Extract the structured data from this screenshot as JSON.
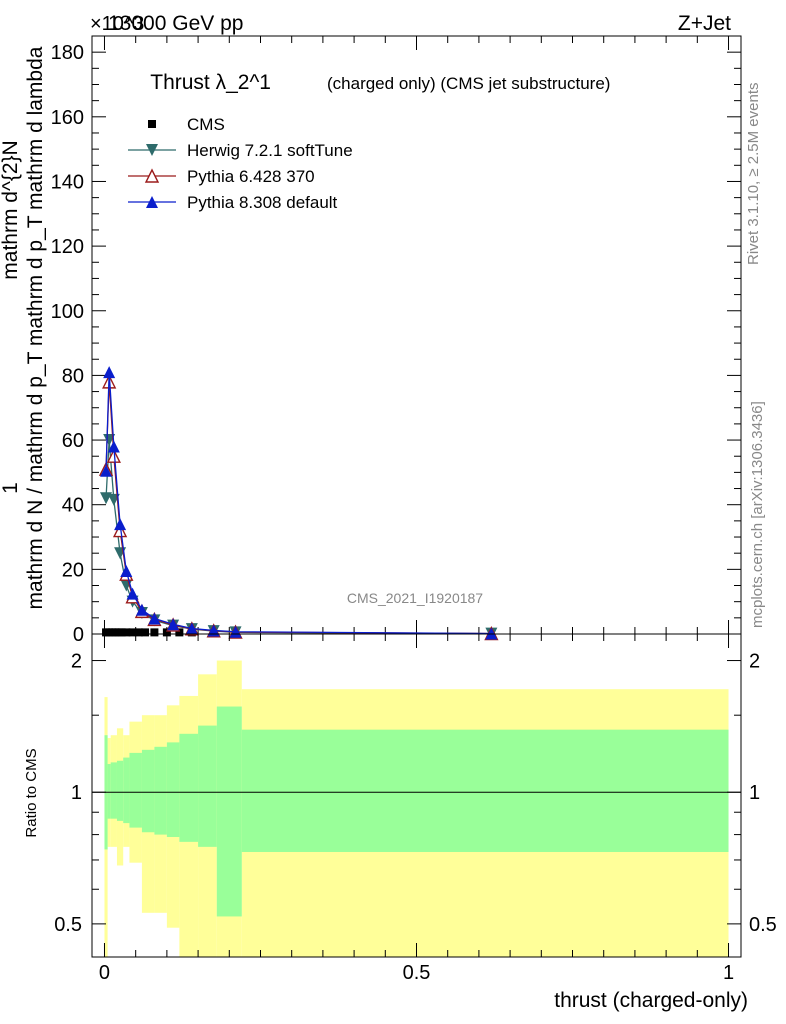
{
  "header": {
    "energy_label": "13000 GeV pp",
    "process_label": "Z+Jet",
    "exponent_label": "×10^3"
  },
  "side_notes": {
    "rivet": "Rivet 3.1.10, ≥ 2.5M events",
    "mcplots": "mcplots.cern.ch [arXiv:1306.3436]"
  },
  "chart_data": [
    {
      "type": "line",
      "title": "Thrust λ_2^1",
      "subtitle": "(charged only) (CMS jet substructure)",
      "analysis_label": "CMS_2021_I1920187",
      "ylabel_numerator": "1",
      "ylabel_denominator": "mathrm d N / mathrm d p_T mathrm d p_T mathrm d lambda",
      "ylabel_dN": "mathrm d^{2}N",
      "ylim": [
        0,
        185
      ],
      "yticks": [
        0,
        20,
        40,
        60,
        80,
        100,
        120,
        140,
        160,
        180
      ],
      "ytick_labels": [
        "0",
        "20",
        "40",
        "60",
        "80",
        "100",
        "120",
        "140",
        "160",
        "180"
      ],
      "y_multiplier": "×10^3",
      "xlim": [
        -0.02,
        1.02
      ],
      "legend_position": "top-left",
      "series": [
        {
          "name": "CMS",
          "color": "#000000",
          "marker": "square",
          "x": [
            0.0025,
            0.0075,
            0.0125,
            0.0175,
            0.0225,
            0.0275,
            0.035,
            0.045,
            0.055,
            0.065,
            0.08,
            0.1,
            0.12,
            0.14
          ],
          "y": [
            0.5,
            0.5,
            0.5,
            0.5,
            0.5,
            0.5,
            0.5,
            0.5,
            0.5,
            0.5,
            0.5,
            0.5,
            0.5,
            0.5
          ]
        },
        {
          "name": "Herwig 7.2.1 softTune",
          "color": "#2e6b6b",
          "marker": "triangle-down",
          "x": [
            0.0025,
            0.0075,
            0.015,
            0.025,
            0.035,
            0.045,
            0.06,
            0.08,
            0.11,
            0.14,
            0.175,
            0.21,
            0.62
          ],
          "y": [
            42,
            60,
            41.5,
            25,
            15,
            10,
            6.5,
            4.2,
            2.6,
            1.5,
            0.9,
            0.5,
            0.1
          ]
        },
        {
          "name": "Pythia 6.428 370",
          "color": "#9b1b1b",
          "marker": "triangle-up-open",
          "x": [
            0.0025,
            0.0075,
            0.015,
            0.025,
            0.035,
            0.045,
            0.06,
            0.08,
            0.11,
            0.14,
            0.175,
            0.21,
            0.62
          ],
          "y": [
            51,
            78,
            55,
            32,
            18.5,
            11.5,
            7,
            4.5,
            2.8,
            1.6,
            1,
            0.6,
            0.15
          ]
        },
        {
          "name": "Pythia 8.308 default",
          "color": "#0a1ecc",
          "marker": "triangle-up",
          "x": [
            0.0025,
            0.0075,
            0.015,
            0.025,
            0.035,
            0.045,
            0.06,
            0.08,
            0.11,
            0.14,
            0.175,
            0.21,
            0.62
          ],
          "y": [
            50.5,
            81,
            58,
            34,
            19.5,
            12.5,
            7.5,
            4.8,
            3,
            1.7,
            1.1,
            0.7,
            0.15
          ]
        }
      ]
    },
    {
      "type": "area",
      "ylabel": "Ratio to CMS",
      "xlabel": "thrust (charged-only)",
      "log_y": true,
      "ylim": [
        0.42,
        2.3
      ],
      "yticks": [
        0.5,
        1,
        2
      ],
      "ytick_labels": [
        "0.5",
        "1",
        "2"
      ],
      "xlim": [
        -0.02,
        1.02
      ],
      "xticks": [
        0,
        0.5,
        1
      ],
      "xtick_labels": [
        "0",
        "0.5",
        "1"
      ],
      "reference_line": 1,
      "bands": {
        "x_edges": [
          0,
          0.005,
          0.01,
          0.02,
          0.03,
          0.04,
          0.06,
          0.08,
          0.1,
          0.12,
          0.15,
          0.18,
          0.22,
          1.0
        ],
        "inner_lo": [
          0.74,
          0.87,
          0.87,
          0.86,
          0.85,
          0.83,
          0.81,
          0.8,
          0.79,
          0.77,
          0.75,
          0.52,
          0.73
        ],
        "inner_hi": [
          1.35,
          1.16,
          1.17,
          1.18,
          1.2,
          1.23,
          1.25,
          1.27,
          1.3,
          1.36,
          1.42,
          1.57,
          1.39
        ],
        "outer_lo": [
          0.3,
          0.75,
          0.75,
          0.68,
          0.75,
          0.69,
          0.53,
          0.53,
          0.49,
          0.4,
          0.3,
          0.3,
          0.3
        ],
        "outer_hi": [
          1.65,
          1.33,
          1.35,
          1.4,
          1.35,
          1.45,
          1.5,
          1.5,
          1.58,
          1.66,
          1.86,
          2.0,
          1.72
        ],
        "inner_color": "#99ff99",
        "outer_color": "#ffff99"
      }
    }
  ]
}
